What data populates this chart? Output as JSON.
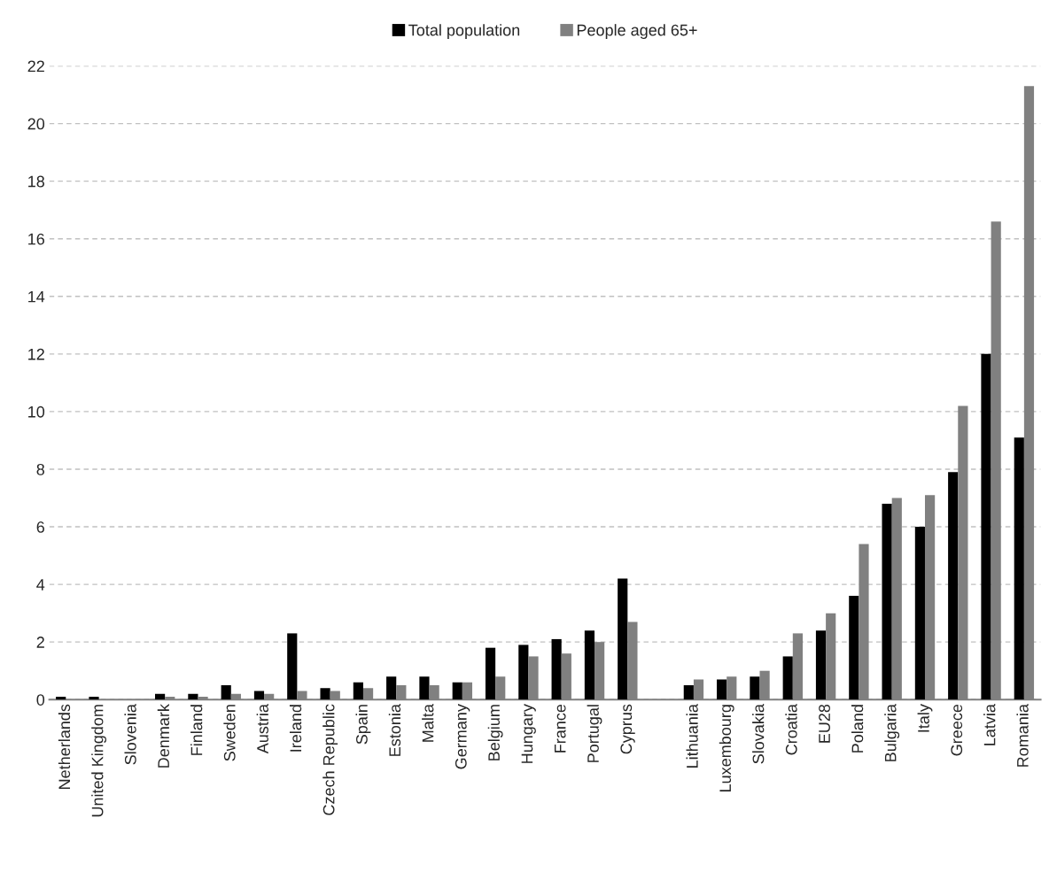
{
  "chart_data": {
    "type": "bar",
    "categories": [
      "Netherlands",
      "United Kingdom",
      "Slovenia",
      "Denmark",
      "Finland",
      "Sweden",
      "Austria",
      "Ireland",
      "Czech Republic",
      "Spain",
      "Estonia",
      "Malta",
      "Germany",
      "Belgium",
      "Hungary",
      "France",
      "Portugal",
      "Cyprus",
      null,
      "Lithuania",
      "Luxembourg",
      "Slovakia",
      "Croatia",
      "EU28",
      "Poland",
      "Bulgaria",
      "Italy",
      "Greece",
      "Latvia",
      "Romania"
    ],
    "series": [
      {
        "name": "Total population",
        "color": "#000000",
        "values": [
          0.1,
          0.1,
          0,
          0.2,
          0.2,
          0.5,
          0.3,
          2.3,
          0.4,
          0.6,
          0.8,
          0.8,
          0.6,
          1.8,
          1.9,
          2.1,
          2.4,
          4.2,
          null,
          0.5,
          0.7,
          0.8,
          1.5,
          2.4,
          3.6,
          6.8,
          6.0,
          7.9,
          12.0,
          9.1
        ]
      },
      {
        "name": "People aged 65+",
        "color": "#808080",
        "values": [
          0,
          0,
          0,
          0.1,
          0.1,
          0.2,
          0.2,
          0.3,
          0.3,
          0.4,
          0.5,
          0.5,
          0.6,
          0.8,
          1.5,
          1.6,
          2.0,
          2.7,
          null,
          0.7,
          0.8,
          1.0,
          2.3,
          3.0,
          5.4,
          7.0,
          7.1,
          10.2,
          16.6,
          21.3
        ]
      }
    ],
    "ylim": [
      0,
      22
    ],
    "yticks": [
      0,
      2,
      4,
      6,
      8,
      10,
      12,
      14,
      16,
      18,
      20,
      22
    ],
    "grid": "y",
    "legend": "top"
  }
}
